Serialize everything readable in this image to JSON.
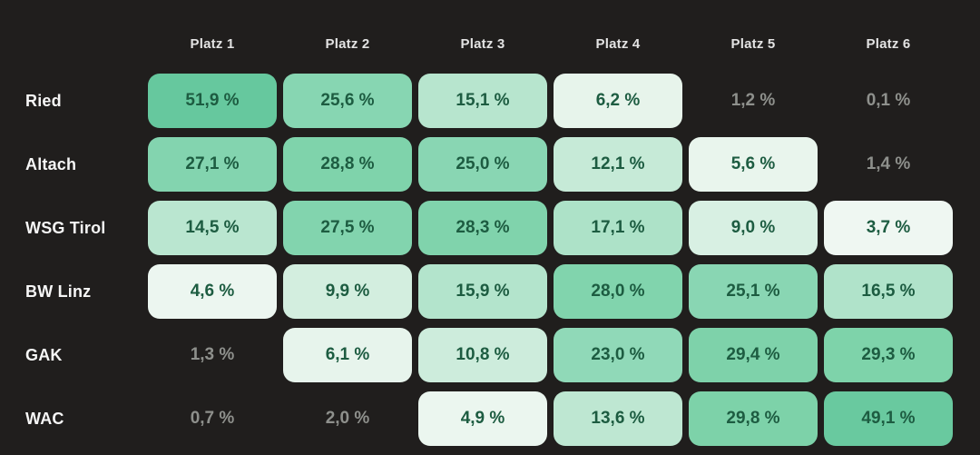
{
  "chart_data": {
    "type": "heatmap",
    "columns": [
      "Platz 1",
      "Platz 2",
      "Platz 3",
      "Platz 4",
      "Platz 5",
      "Platz 6"
    ],
    "row_labels": [
      "Ried",
      "Altach",
      "WSG Tirol",
      "BW Linz",
      "GAK",
      "WAC"
    ],
    "values": [
      [
        51.9,
        25.6,
        15.1,
        6.2,
        1.2,
        0.1
      ],
      [
        27.1,
        28.8,
        25.0,
        12.1,
        5.6,
        1.4
      ],
      [
        14.5,
        27.5,
        28.3,
        17.1,
        9.0,
        3.7
      ],
      [
        4.6,
        9.9,
        15.9,
        28.0,
        25.1,
        16.5
      ],
      [
        1.3,
        6.1,
        10.8,
        23.0,
        29.4,
        29.3
      ],
      [
        0.7,
        2.0,
        4.9,
        13.6,
        29.8,
        49.1
      ]
    ],
    "unit": "%",
    "value_format": "comma-decimal with space before %",
    "legend": "none",
    "note": "cells below ~3% rendered without colored card"
  },
  "header": {
    "columns": [
      "Platz 1",
      "Platz 2",
      "Platz 3",
      "Platz 4",
      "Platz 5",
      "Platz 6"
    ]
  },
  "rows": [
    {
      "team": "Ried",
      "cells": [
        {
          "label": "51,9 %",
          "value": 51.9
        },
        {
          "label": "25,6 %",
          "value": 25.6
        },
        {
          "label": "15,1 %",
          "value": 15.1
        },
        {
          "label": "6,2 %",
          "value": 6.2
        },
        {
          "label": "1,2 %",
          "value": 1.2
        },
        {
          "label": "0,1 %",
          "value": 0.1
        }
      ]
    },
    {
      "team": "Altach",
      "cells": [
        {
          "label": "27,1 %",
          "value": 27.1
        },
        {
          "label": "28,8 %",
          "value": 28.8
        },
        {
          "label": "25,0 %",
          "value": 25.0
        },
        {
          "label": "12,1 %",
          "value": 12.1
        },
        {
          "label": "5,6 %",
          "value": 5.6
        },
        {
          "label": "1,4 %",
          "value": 1.4
        }
      ]
    },
    {
      "team": "WSG Tirol",
      "cells": [
        {
          "label": "14,5 %",
          "value": 14.5
        },
        {
          "label": "27,5 %",
          "value": 27.5
        },
        {
          "label": "28,3 %",
          "value": 28.3
        },
        {
          "label": "17,1 %",
          "value": 17.1
        },
        {
          "label": "9,0 %",
          "value": 9.0
        },
        {
          "label": "3,7 %",
          "value": 3.7
        }
      ]
    },
    {
      "team": "BW Linz",
      "cells": [
        {
          "label": "4,6 %",
          "value": 4.6
        },
        {
          "label": "9,9 %",
          "value": 9.9
        },
        {
          "label": "15,9 %",
          "value": 15.9
        },
        {
          "label": "28,0 %",
          "value": 28.0
        },
        {
          "label": "25,1 %",
          "value": 25.1
        },
        {
          "label": "16,5 %",
          "value": 16.5
        }
      ]
    },
    {
      "team": "GAK",
      "cells": [
        {
          "label": "1,3 %",
          "value": 1.3
        },
        {
          "label": "6,1 %",
          "value": 6.1
        },
        {
          "label": "10,8 %",
          "value": 10.8
        },
        {
          "label": "23,0 %",
          "value": 23.0
        },
        {
          "label": "29,4 %",
          "value": 29.4
        },
        {
          "label": "29,3 %",
          "value": 29.3
        }
      ]
    },
    {
      "team": "WAC",
      "cells": [
        {
          "label": "0,7 %",
          "value": 0.7
        },
        {
          "label": "2,0 %",
          "value": 2.0
        },
        {
          "label": "4,9 %",
          "value": 4.9
        },
        {
          "label": "13,6 %",
          "value": 13.6
        },
        {
          "label": "29,8 %",
          "value": 29.8
        },
        {
          "label": "49,1 %",
          "value": 49.1
        }
      ]
    }
  ],
  "colors": {
    "background": "#201e1d",
    "card_text": "#1d5c41",
    "muted_text": "#8e908c",
    "header_text": "#e3e3e3",
    "label_text": "#f6f6f6",
    "card_threshold": 3,
    "scale_stops": [
      [
        0,
        "#f7fbf8"
      ],
      [
        4,
        "#eef7f1"
      ],
      [
        6,
        "#e8f4ec"
      ],
      [
        9,
        "#d8f0e3"
      ],
      [
        12,
        "#c6ead7"
      ],
      [
        15,
        "#b7e5ce"
      ],
      [
        18,
        "#a8e0c6"
      ],
      [
        23,
        "#90d9b8"
      ],
      [
        26,
        "#86d5b1"
      ],
      [
        30,
        "#7cd2a9"
      ],
      [
        52,
        "#66c89e"
      ]
    ]
  }
}
